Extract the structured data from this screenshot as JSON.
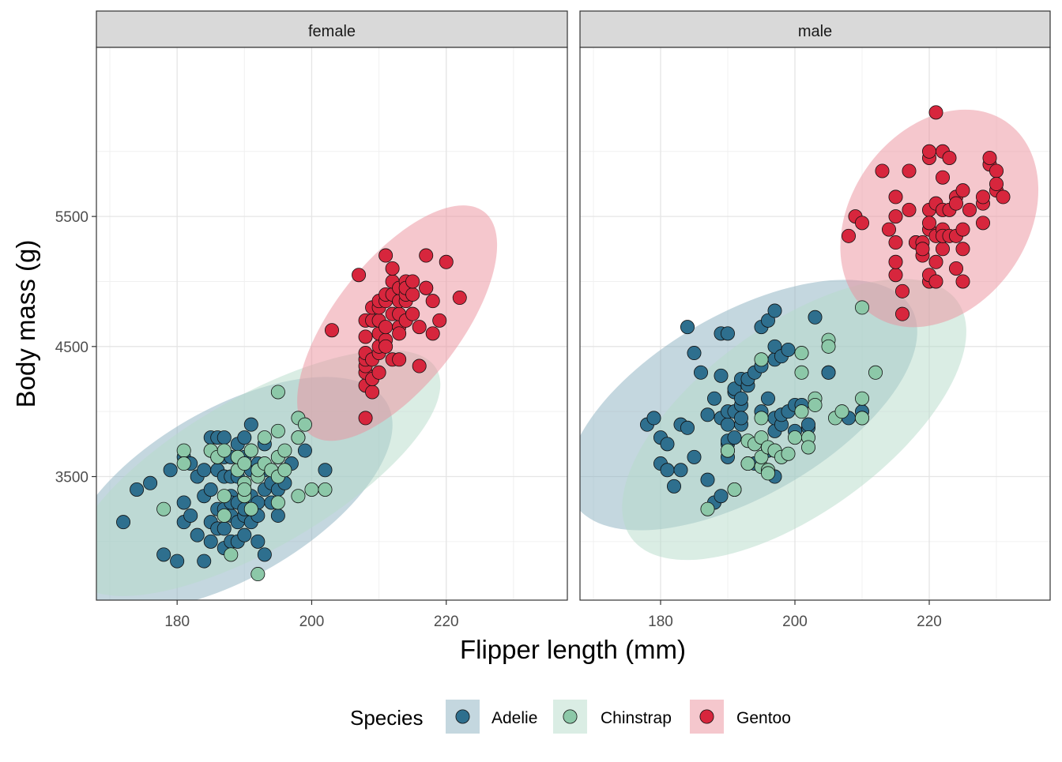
{
  "chart_data": {
    "type": "scatter",
    "xlabel": "Flipper length (mm)",
    "ylabel": "Body mass (g)",
    "xlim": [
      168,
      238
    ],
    "ylim": [
      2550,
      6800
    ],
    "x_ticks": [
      180,
      200,
      220
    ],
    "y_ticks": [
      3500,
      4500,
      5500
    ],
    "grid": true,
    "legend": {
      "title": "Species",
      "position": "bottom",
      "entries": [
        {
          "name": "Adelie",
          "color": "#2e6f8e"
        },
        {
          "name": "Chinstrap",
          "color": "#8cc8a8"
        },
        {
          "name": "Gentoo",
          "color": "#d7263d"
        }
      ]
    },
    "ellipse_fill": {
      "Adelie": "#8aafc0",
      "Chinstrap": "#b5dbc9",
      "Gentoo": "#eb8f9c"
    },
    "panels": [
      {
        "label": "female",
        "series": [
          {
            "name": "Adelie",
            "ellipse": {
              "cx": 187.8,
              "cy": 3369,
              "rx": 27.0,
              "ry": 650,
              "angle": 30
            },
            "x": [
              172,
              174,
              176,
              178,
              179,
              180,
              181,
              181,
              181,
              182,
              182,
              183,
              183,
              184,
              184,
              184,
              185,
              185,
              185,
              185,
              185,
              186,
              186,
              186,
              186,
              186,
              187,
              187,
              187,
              187,
              187,
              187,
              188,
              188,
              188,
              188,
              188,
              188,
              189,
              189,
              189,
              189,
              189,
              189,
              190,
              190,
              190,
              190,
              190,
              190,
              190,
              191,
              191,
              191,
              191,
              191,
              192,
              192,
              192,
              192,
              192,
              193,
              193,
              193,
              193,
              194,
              194,
              195,
              195,
              195,
              196,
              197,
              198,
              199,
              202
            ],
            "y": [
              3150,
              3400,
              3450,
              2900,
              3550,
              2850,
              3300,
              3650,
              3150,
              3200,
              3600,
              3050,
              3500,
              2850,
              3350,
              3550,
              3000,
              3150,
              3400,
              3700,
              3800,
              3100,
              3250,
              3550,
              3650,
              3800,
              3100,
              3500,
              3800,
              3650,
              3250,
              2950,
              3000,
              3200,
              3350,
              3500,
              3650,
              3300,
              3000,
              3300,
              3650,
              3750,
              3500,
              3150,
              3050,
              3200,
              3400,
              3650,
              3800,
              3450,
              3250,
              3350,
              3550,
              3700,
              3900,
              3150,
              3000,
              3300,
              3500,
              3600,
              3200,
              2900,
              3400,
              3550,
              3750,
              3300,
              3450,
              3200,
              3400,
              3650,
              3450,
              3600,
              3800,
              3700,
              3550
            ]
          },
          {
            "name": "Chinstrap",
            "ellipse": {
              "cx": 191.7,
              "cy": 3527,
              "rx": 31.0,
              "ry": 580,
              "angle": 30
            },
            "x": [
              178,
              181,
              181,
              185,
              186,
              187,
              187,
              187,
              188,
              189,
              189,
              190,
              190,
              190,
              190,
              191,
              191,
              192,
              192,
              192,
              193,
              193,
              194,
              195,
              195,
              195,
              195,
              195,
              196,
              196,
              198,
              198,
              198,
              199,
              200,
              202
            ],
            "y": [
              3250,
              3700,
              3600,
              3700,
              3650,
              3200,
              3350,
              3700,
              2900,
              3550,
              3650,
              3600,
              3350,
              3450,
              3400,
              3700,
              3250,
              3500,
              3550,
              2750,
              3800,
              3600,
              3550,
              3650,
              3300,
              3850,
              4150,
              3500,
              3700,
              3550,
              3950,
              3800,
              3350,
              3900,
              3400,
              3400
            ]
          },
          {
            "name": "Gentoo",
            "ellipse": {
              "cx": 212.7,
              "cy": 4680,
              "rx": 21.0,
              "ry": 480,
              "angle": 52
            },
            "x": [
              203,
              207,
              208,
              208,
              208,
              208,
              208,
              208,
              208,
              208,
              209,
              209,
              209,
              209,
              209,
              210,
              210,
              210,
              210,
              210,
              210,
              210,
              211,
              211,
              211,
              211,
              211,
              211,
              212,
              212,
              212,
              212,
              212,
              213,
              213,
              213,
              213,
              213,
              213,
              214,
              214,
              214,
              214,
              214,
              215,
              215,
              215,
              216,
              216,
              217,
              217,
              217,
              218,
              218,
              219,
              220,
              222
            ],
            "y": [
              4625,
              5050,
              3950,
              4200,
              4300,
              4350,
              4400,
              4450,
              4575,
              4700,
              4150,
              4250,
              4400,
              4700,
              4800,
              4450,
              4500,
              4600,
              4700,
              4800,
              4850,
              4300,
              4550,
              4650,
              4850,
              4900,
              5200,
              4500,
              4400,
              4750,
              4900,
              5000,
              5100,
              4400,
              4650,
              4750,
              4850,
              4950,
              4600,
              4850,
              4700,
              4900,
              5000,
              4950,
              4750,
              4900,
              5000,
              4350,
              4650,
              4950,
              5200,
              4950,
              4600,
              4850,
              4700,
              5150,
              4875
            ]
          }
        ]
      },
      {
        "label": "male",
        "series": [
          {
            "name": "Adelie",
            "ellipse": {
              "cx": 192.2,
              "cy": 4050,
              "rx": 29.0,
              "ry": 700,
              "angle": 30
            },
            "x": [
              178,
              179,
              180,
              180,
              181,
              181,
              182,
              183,
              183,
              184,
              184,
              185,
              185,
              186,
              187,
              187,
              188,
              188,
              189,
              189,
              189,
              189,
              190,
              190,
              190,
              190,
              190,
              190,
              190,
              191,
              191,
              191,
              191,
              191,
              192,
              192,
              192,
              192,
              192,
              193,
              193,
              193,
              194,
              194,
              195,
              195,
              195,
              196,
              196,
              196,
              197,
              197,
              197,
              197,
              197,
              197,
              198,
              198,
              198,
              199,
              199,
              200,
              200,
              201,
              202,
              202,
              203,
              205,
              205,
              208,
              210,
              210
            ],
            "y": [
              3900,
              3950,
              3600,
              3800,
              3750,
              3550,
              3425,
              3550,
              3900,
              3875,
              4650,
              4450,
              3650,
              4300,
              3475,
              3975,
              4100,
              3300,
              3950,
              4275,
              3350,
              4600,
              4600,
              3650,
              3700,
              3750,
              3900,
              3775,
              4000,
              3800,
              3400,
              4000,
              4150,
              4175,
              3900,
              4050,
              4100,
              4250,
              3950,
              4200,
              3600,
              4250,
              4300,
              3600,
              4000,
              4350,
              4650,
              3700,
              4100,
              4700,
              3500,
              3850,
              3950,
              4400,
              4500,
              4775,
              3900,
              3975,
              4425,
              4000,
              4475,
              4050,
              3850,
              4050,
              3875,
              3900,
              4725,
              4300,
              4300,
              3950,
              4000,
              3950
            ]
          },
          {
            "name": "Chinstrap",
            "ellipse": {
              "cx": 199.9,
              "cy": 3939,
              "rx": 30.0,
              "ry": 720,
              "angle": 36
            },
            "x": [
              187,
              190,
              191,
              193,
              193,
              194,
              195,
              195,
              195,
              195,
              195,
              196,
              196,
              196,
              197,
              197,
              198,
              199,
              200,
              201,
              201,
              201,
              202,
              202,
              203,
              203,
              205,
              205,
              206,
              207,
              210,
              210,
              210,
              212
            ],
            "y": [
              3250,
              3700,
              3400,
              3775,
              3600,
              3750,
              3575,
              3800,
              3650,
              3950,
              4400,
              3550,
              3725,
              3525,
              3700,
              3700,
              3650,
              3675,
              3800,
              4300,
              4450,
              4000,
              3800,
              3725,
              4100,
              4050,
              4550,
              4500,
              3950,
              4000,
              4100,
              3950,
              4800,
              4300
            ]
          },
          {
            "name": "Gentoo",
            "ellipse": {
              "cx": 221.5,
              "cy": 5485,
              "rx": 17.5,
              "ry": 680,
              "angle": 55
            },
            "x": [
              208,
              209,
              210,
              213,
              214,
              215,
              215,
              215,
              215,
              215,
              216,
              216,
              217,
              217,
              218,
              218,
              219,
              219,
              219,
              220,
              220,
              220,
              220,
              220,
              220,
              220,
              221,
              221,
              221,
              221,
              221,
              222,
              222,
              222,
              222,
              222,
              222,
              223,
              223,
              223,
              224,
              224,
              224,
              224,
              225,
              225,
              225,
              225,
              226,
              228,
              228,
              228,
              229,
              229,
              230,
              230,
              230,
              231
            ],
            "y": [
              5350,
              5500,
              5450,
              5850,
              5400,
              5500,
              5050,
              5150,
              5300,
              5650,
              4925,
              4750,
              5550,
              5850,
              5300,
              5300,
              5300,
              5200,
              5250,
              5400,
              5000,
              5550,
              5950,
              6000,
              5050,
              5450,
              5000,
              5600,
              5350,
              5150,
              6300,
              5400,
              5550,
              5250,
              5350,
              5800,
              6000,
              5550,
              5350,
              5950,
              5100,
              5350,
              5650,
              5600,
              5700,
              5400,
              5250,
              5000,
              5550,
              5600,
              5450,
              5650,
              5900,
              5950,
              5850,
              5700,
              5750,
              5650
            ]
          }
        ]
      }
    ]
  }
}
